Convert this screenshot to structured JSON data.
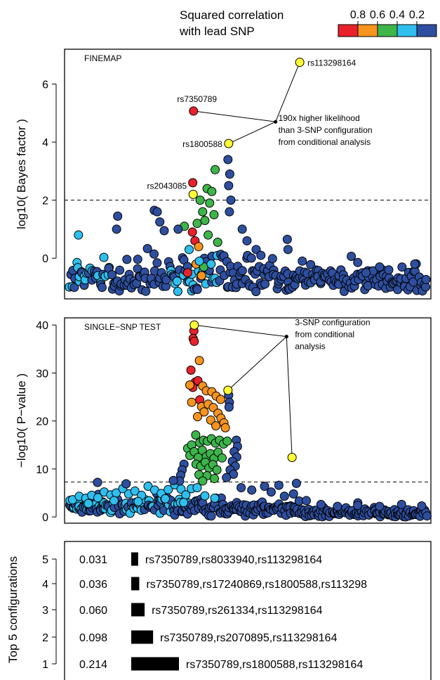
{
  "legend": {
    "title_line1": "Squared correlation",
    "title_line2": "with lead SNP",
    "tick_labels": [
      "0.8",
      "0.6",
      "0.4",
      "0.2"
    ],
    "colors": [
      "#e8212a",
      "#f7941d",
      "#3cb54a",
      "#2ebfef",
      "#2e4fa0"
    ]
  },
  "colors": {
    "lead": "#ffff33",
    "r2_0_8_1": "#e8212a",
    "r2_0_6_0_8": "#f7941d",
    "r2_0_4_0_6": "#3cb54a",
    "r2_0_2_0_4": "#2ebfef",
    "r2_0_0_2": "#2e4fa0"
  },
  "chart_data": [
    {
      "type": "scatter",
      "panel_label": "FINEMAP",
      "ylabel": "log10( Bayes factor )",
      "yticks": [
        0,
        2,
        4,
        6
      ],
      "ylim": [
        -1.4,
        7.2
      ],
      "xlim": [
        0,
        100
      ],
      "threshold_y": 2,
      "annotated_points": [
        {
          "label": "rs113298164",
          "x": 64.2,
          "y": 6.75,
          "color": "lead"
        },
        {
          "label": "rs7350789",
          "x": 35.2,
          "y": 5.07,
          "color": "r2_0_8_1"
        },
        {
          "label": "rs1800588",
          "x": 44.8,
          "y": 3.95,
          "color": "lead"
        },
        {
          "label": "rs2043085",
          "x": 35.1,
          "y": 2.2,
          "color": "lead"
        }
      ],
      "annotation": {
        "lines": [
          "190x higher likelihood",
          "than 3-SNP configuration",
          "from conditional analysis"
        ],
        "junction": {
          "x": 57.6,
          "y": 4.7
        },
        "connects": [
          "rs113298164",
          "rs7350789",
          "rs1800588"
        ]
      },
      "points": [
        {
          "x": 35.0,
          "y": 2.6,
          "c": "r2_0_8_1"
        },
        {
          "x": 34.9,
          "y": 0.9,
          "c": "r2_0_8_1"
        },
        {
          "x": 35.6,
          "y": 0.6,
          "c": "r2_0_8_1"
        },
        {
          "x": 36.6,
          "y": 0.4,
          "c": "r2_0_6_0_8"
        },
        {
          "x": 35.9,
          "y": -0.2,
          "c": "r2_0_6_0_8"
        },
        {
          "x": 33.6,
          "y": -0.5,
          "c": "r2_0_8_1"
        },
        {
          "x": 37.4,
          "y": -0.6,
          "c": "r2_0_6_0_8"
        },
        {
          "x": 32.7,
          "y": 1.1,
          "c": "r2_0_4_0_6"
        },
        {
          "x": 36.2,
          "y": 1.2,
          "c": "r2_0_4_0_6"
        },
        {
          "x": 37.0,
          "y": 2.0,
          "c": "r2_0_4_0_6"
        },
        {
          "x": 37.7,
          "y": 1.6,
          "c": "r2_0_4_0_6"
        },
        {
          "x": 38.9,
          "y": 2.4,
          "c": "r2_0_4_0_6"
        },
        {
          "x": 39.6,
          "y": 1.9,
          "c": "r2_0_4_0_6"
        },
        {
          "x": 40.2,
          "y": 2.3,
          "c": "r2_0_4_0_6"
        },
        {
          "x": 41.1,
          "y": 3.05,
          "c": "r2_0_4_0_6"
        },
        {
          "x": 38.3,
          "y": 1.3,
          "c": "r2_0_4_0_6"
        },
        {
          "x": 39.2,
          "y": 0.8,
          "c": "r2_0_4_0_6"
        },
        {
          "x": 40.8,
          "y": 1.5,
          "c": "r2_0_4_0_6"
        },
        {
          "x": 41.8,
          "y": 0.55,
          "c": "r2_0_4_0_6"
        },
        {
          "x": 38.0,
          "y": -0.3,
          "c": "r2_0_4_0_6"
        },
        {
          "x": 3.8,
          "y": 0.8,
          "c": "r2_0_2_0_4"
        },
        {
          "x": 34.0,
          "y": 0.3,
          "c": "r2_0_2_0_4"
        },
        {
          "x": 36.8,
          "y": -0.1,
          "c": "r2_0_2_0_4"
        },
        {
          "x": 40.0,
          "y": -0.2,
          "c": "r2_0_2_0_4"
        },
        {
          "x": 44.6,
          "y": 3.4,
          "c": "r2_0_0_2"
        },
        {
          "x": 45.1,
          "y": 2.9,
          "c": "r2_0_0_2"
        },
        {
          "x": 44.8,
          "y": 2.5,
          "c": "r2_0_0_2"
        },
        {
          "x": 45.4,
          "y": 2.0,
          "c": "r2_0_0_2"
        },
        {
          "x": 45.0,
          "y": 1.6,
          "c": "r2_0_0_2"
        },
        {
          "x": 14.5,
          "y": 1.45,
          "c": "r2_0_0_2"
        },
        {
          "x": 14.2,
          "y": 1.0,
          "c": "r2_0_0_2"
        },
        {
          "x": 24.5,
          "y": 1.65,
          "c": "r2_0_0_2"
        },
        {
          "x": 25.3,
          "y": 1.6,
          "c": "r2_0_0_2"
        },
        {
          "x": 26.0,
          "y": 1.25,
          "c": "r2_0_0_2"
        },
        {
          "x": 27.2,
          "y": 0.95,
          "c": "r2_0_0_2"
        },
        {
          "x": 31.0,
          "y": 1.0,
          "c": "r2_0_0_2"
        },
        {
          "x": 48.5,
          "y": 1.0,
          "c": "r2_0_0_2"
        },
        {
          "x": 49.8,
          "y": 0.6,
          "c": "r2_0_0_2"
        },
        {
          "x": 52.3,
          "y": 0.3,
          "c": "r2_0_0_2"
        },
        {
          "x": 53.6,
          "y": 0.1,
          "c": "r2_0_0_2"
        },
        {
          "x": 60.8,
          "y": 0.65,
          "c": "r2_0_0_2"
        },
        {
          "x": 61.0,
          "y": 0.3,
          "c": "r2_0_0_2"
        },
        {
          "x": 64.9,
          "y": -0.1,
          "c": "r2_0_0_2"
        },
        {
          "x": 86.0,
          "y": -0.3,
          "c": "r2_0_0_2"
        },
        {
          "x": 95.6,
          "y": -0.2,
          "c": "r2_0_0_2"
        },
        {
          "x": 82.3,
          "y": -0.5,
          "c": "r2_0_0_2"
        },
        {
          "x": 88.5,
          "y": -0.4,
          "c": "r2_0_0_2"
        }
      ]
    },
    {
      "type": "scatter",
      "panel_label": "SINGLE−SNP TEST",
      "ylabel": "−log10( P−value )",
      "yticks": [
        0,
        10,
        20,
        30,
        40
      ],
      "ylim": [
        -1.3,
        41.5
      ],
      "xlim": [
        0,
        100
      ],
      "threshold_y": 7.3,
      "annotated_points": [
        {
          "x": 35.4,
          "y": 40.0,
          "color": "lead"
        },
        {
          "x": 44.6,
          "y": 26.4,
          "color": "lead"
        },
        {
          "x": 62.1,
          "y": 12.4,
          "color": "lead"
        }
      ],
      "annotation": {
        "lines": [
          "3-SNP configuration",
          "from conditional",
          "analysis"
        ],
        "junction": {
          "x": 60.6,
          "y": 37.6
        }
      },
      "points": [
        {
          "x": 35.3,
          "y": 38.8,
          "c": "r2_0_8_1"
        },
        {
          "x": 35.1,
          "y": 37.2,
          "c": "r2_0_8_1"
        },
        {
          "x": 35.4,
          "y": 36.6,
          "c": "r2_0_8_1"
        },
        {
          "x": 34.5,
          "y": 30.6,
          "c": "r2_0_8_1"
        },
        {
          "x": 35.7,
          "y": 28.1,
          "c": "r2_0_8_1"
        },
        {
          "x": 36.4,
          "y": 28.4,
          "c": "r2_0_8_1"
        },
        {
          "x": 35.0,
          "y": 27.0,
          "c": "r2_0_8_1"
        },
        {
          "x": 36.9,
          "y": 24.4,
          "c": "r2_0_8_1"
        },
        {
          "x": 36.8,
          "y": 32.6,
          "c": "r2_0_6_0_8"
        },
        {
          "x": 34.2,
          "y": 27.5,
          "c": "r2_0_6_0_8"
        },
        {
          "x": 37.7,
          "y": 27.3,
          "c": "r2_0_6_0_8"
        },
        {
          "x": 38.7,
          "y": 26.3,
          "c": "r2_0_6_0_8"
        },
        {
          "x": 40.2,
          "y": 26.1,
          "c": "r2_0_6_0_8"
        },
        {
          "x": 41.4,
          "y": 25.2,
          "c": "r2_0_6_0_8"
        },
        {
          "x": 42.6,
          "y": 24.5,
          "c": "r2_0_6_0_8"
        },
        {
          "x": 37.4,
          "y": 23.0,
          "c": "r2_0_6_0_8"
        },
        {
          "x": 39.2,
          "y": 23.5,
          "c": "r2_0_6_0_8"
        },
        {
          "x": 40.6,
          "y": 22.8,
          "c": "r2_0_6_0_8"
        },
        {
          "x": 41.9,
          "y": 21.6,
          "c": "r2_0_6_0_8"
        },
        {
          "x": 42.7,
          "y": 20.6,
          "c": "r2_0_6_0_8"
        },
        {
          "x": 43.5,
          "y": 19.6,
          "c": "r2_0_6_0_8"
        },
        {
          "x": 38.1,
          "y": 21.9,
          "c": "r2_0_6_0_8"
        },
        {
          "x": 39.9,
          "y": 20.2,
          "c": "r2_0_6_0_8"
        },
        {
          "x": 41.3,
          "y": 19.0,
          "c": "r2_0_6_0_8"
        },
        {
          "x": 43.9,
          "y": 18.6,
          "c": "r2_0_6_0_8"
        },
        {
          "x": 36.3,
          "y": 20.9,
          "c": "r2_0_6_0_8"
        },
        {
          "x": 34.7,
          "y": 23.9,
          "c": "r2_0_6_0_8"
        },
        {
          "x": 33.6,
          "y": 14.3,
          "c": "r2_0_4_0_6"
        },
        {
          "x": 34.7,
          "y": 15.0,
          "c": "r2_0_4_0_6"
        },
        {
          "x": 35.8,
          "y": 17.1,
          "c": "r2_0_4_0_6"
        },
        {
          "x": 36.9,
          "y": 15.5,
          "c": "r2_0_4_0_6"
        },
        {
          "x": 37.9,
          "y": 16.0,
          "c": "r2_0_4_0_6"
        },
        {
          "x": 39.0,
          "y": 15.8,
          "c": "r2_0_4_0_6"
        },
        {
          "x": 40.1,
          "y": 16.3,
          "c": "r2_0_4_0_6"
        },
        {
          "x": 41.2,
          "y": 15.4,
          "c": "r2_0_4_0_6"
        },
        {
          "x": 42.3,
          "y": 16.0,
          "c": "r2_0_4_0_6"
        },
        {
          "x": 43.4,
          "y": 15.2,
          "c": "r2_0_4_0_6"
        },
        {
          "x": 44.4,
          "y": 15.8,
          "c": "r2_0_4_0_6"
        },
        {
          "x": 34.2,
          "y": 12.8,
          "c": "r2_0_4_0_6"
        },
        {
          "x": 35.4,
          "y": 13.6,
          "c": "r2_0_4_0_6"
        },
        {
          "x": 36.5,
          "y": 12.4,
          "c": "r2_0_4_0_6"
        },
        {
          "x": 37.6,
          "y": 13.9,
          "c": "r2_0_4_0_6"
        },
        {
          "x": 38.7,
          "y": 12.6,
          "c": "r2_0_4_0_6"
        },
        {
          "x": 39.8,
          "y": 13.2,
          "c": "r2_0_4_0_6"
        },
        {
          "x": 40.8,
          "y": 12.2,
          "c": "r2_0_4_0_6"
        },
        {
          "x": 41.9,
          "y": 13.5,
          "c": "r2_0_4_0_6"
        },
        {
          "x": 43.0,
          "y": 12.3,
          "c": "r2_0_4_0_6"
        },
        {
          "x": 35.9,
          "y": 11.0,
          "c": "r2_0_4_0_6"
        },
        {
          "x": 37.2,
          "y": 10.6,
          "c": "r2_0_4_0_6"
        },
        {
          "x": 38.4,
          "y": 11.4,
          "c": "r2_0_4_0_6"
        },
        {
          "x": 39.4,
          "y": 10.2,
          "c": "r2_0_4_0_6"
        },
        {
          "x": 40.5,
          "y": 10.9,
          "c": "r2_0_4_0_6"
        },
        {
          "x": 41.6,
          "y": 9.8,
          "c": "r2_0_4_0_6"
        },
        {
          "x": 36.7,
          "y": 8.8,
          "c": "r2_0_4_0_6"
        },
        {
          "x": 38.9,
          "y": 8.6,
          "c": "r2_0_4_0_6"
        },
        {
          "x": 40.9,
          "y": 8.0,
          "c": "r2_0_4_0_6"
        },
        {
          "x": 37.7,
          "y": 7.5,
          "c": "r2_0_4_0_6"
        },
        {
          "x": 2.2,
          "y": 3.6,
          "c": "r2_0_2_0_4"
        },
        {
          "x": 4.0,
          "y": 4.3,
          "c": "r2_0_2_0_4"
        },
        {
          "x": 5.8,
          "y": 3.9,
          "c": "r2_0_2_0_4"
        },
        {
          "x": 7.4,
          "y": 4.5,
          "c": "r2_0_2_0_4"
        },
        {
          "x": 9.1,
          "y": 4.0,
          "c": "r2_0_2_0_4"
        },
        {
          "x": 10.8,
          "y": 5.2,
          "c": "r2_0_2_0_4"
        },
        {
          "x": 12.6,
          "y": 4.6,
          "c": "r2_0_2_0_4"
        },
        {
          "x": 14.1,
          "y": 5.0,
          "c": "r2_0_2_0_4"
        },
        {
          "x": 15.9,
          "y": 5.9,
          "c": "r2_0_2_0_4"
        },
        {
          "x": 17.5,
          "y": 4.8,
          "c": "r2_0_2_0_4"
        },
        {
          "x": 19.2,
          "y": 5.4,
          "c": "r2_0_2_0_4"
        },
        {
          "x": 21.0,
          "y": 4.5,
          "c": "r2_0_2_0_4"
        },
        {
          "x": 22.8,
          "y": 6.4,
          "c": "r2_0_2_0_4"
        },
        {
          "x": 24.6,
          "y": 5.6,
          "c": "r2_0_2_0_4"
        },
        {
          "x": 26.4,
          "y": 4.9,
          "c": "r2_0_2_0_4"
        },
        {
          "x": 28.3,
          "y": 5.7,
          "c": "r2_0_2_0_4"
        },
        {
          "x": 30.1,
          "y": 6.7,
          "c": "r2_0_2_0_4"
        },
        {
          "x": 31.8,
          "y": 5.8,
          "c": "r2_0_2_0_4"
        },
        {
          "x": 33.1,
          "y": 4.6,
          "c": "r2_0_2_0_4"
        },
        {
          "x": 34.6,
          "y": 5.9,
          "c": "r2_0_2_0_4"
        },
        {
          "x": 36.2,
          "y": 6.1,
          "c": "r2_0_2_0_4"
        },
        {
          "x": 6.5,
          "y": 2.8,
          "c": "r2_0_2_0_4"
        },
        {
          "x": 13.5,
          "y": 3.4,
          "c": "r2_0_2_0_4"
        },
        {
          "x": 20.1,
          "y": 3.2,
          "c": "r2_0_2_0_4"
        },
        {
          "x": 27.5,
          "y": 3.8,
          "c": "r2_0_2_0_4"
        },
        {
          "x": 32.5,
          "y": 3.0,
          "c": "r2_0_2_0_4"
        },
        {
          "x": 38.3,
          "y": 4.4,
          "c": "r2_0_2_0_4"
        },
        {
          "x": 41.0,
          "y": 3.9,
          "c": "r2_0_2_0_4"
        },
        {
          "x": 44.8,
          "y": 25.4,
          "c": "r2_0_0_2"
        },
        {
          "x": 45.0,
          "y": 23.9,
          "c": "r2_0_0_2"
        },
        {
          "x": 44.9,
          "y": 22.9,
          "c": "r2_0_0_2"
        },
        {
          "x": 46.9,
          "y": 16.0,
          "c": "r2_0_0_2"
        },
        {
          "x": 47.2,
          "y": 14.7,
          "c": "r2_0_0_2"
        },
        {
          "x": 46.3,
          "y": 13.6,
          "c": "r2_0_0_2"
        },
        {
          "x": 47.0,
          "y": 12.5,
          "c": "r2_0_0_2"
        },
        {
          "x": 45.8,
          "y": 11.6,
          "c": "r2_0_0_2"
        },
        {
          "x": 46.6,
          "y": 10.6,
          "c": "r2_0_0_2"
        },
        {
          "x": 45.2,
          "y": 9.8,
          "c": "r2_0_0_2"
        },
        {
          "x": 46.1,
          "y": 8.9,
          "c": "r2_0_0_2"
        },
        {
          "x": 44.2,
          "y": 8.2,
          "c": "r2_0_0_2"
        },
        {
          "x": 32.6,
          "y": 11.0,
          "c": "r2_0_0_2"
        },
        {
          "x": 32.1,
          "y": 9.8,
          "c": "r2_0_0_2"
        },
        {
          "x": 31.7,
          "y": 8.7,
          "c": "r2_0_0_2"
        },
        {
          "x": 31.4,
          "y": 7.5,
          "c": "r2_0_0_2"
        },
        {
          "x": 9.0,
          "y": 7.2,
          "c": "r2_0_0_2"
        },
        {
          "x": 16.8,
          "y": 6.9,
          "c": "r2_0_0_2"
        },
        {
          "x": 29.7,
          "y": 7.6,
          "c": "r2_0_0_2"
        },
        {
          "x": 54.6,
          "y": 6.4,
          "c": "r2_0_0_2"
        },
        {
          "x": 58.5,
          "y": 6.6,
          "c": "r2_0_0_2"
        },
        {
          "x": 63.3,
          "y": 7.0,
          "c": "r2_0_0_2"
        },
        {
          "x": 48.2,
          "y": 6.1,
          "c": "r2_0_0_2"
        },
        {
          "x": 51.1,
          "y": 5.6,
          "c": "r2_0_0_2"
        },
        {
          "x": 56.4,
          "y": 5.2,
          "c": "r2_0_0_2"
        },
        {
          "x": 62.5,
          "y": 4.8,
          "c": "r2_0_0_2"
        },
        {
          "x": 66.0,
          "y": 3.4,
          "c": "r2_0_0_2"
        },
        {
          "x": 70.0,
          "y": 2.6,
          "c": "r2_0_0_2"
        },
        {
          "x": 74.5,
          "y": 2.2,
          "c": "r2_0_0_2"
        },
        {
          "x": 80.0,
          "y": 2.4,
          "c": "r2_0_0_2"
        },
        {
          "x": 86.0,
          "y": 2.2,
          "c": "r2_0_0_2"
        },
        {
          "x": 92.0,
          "y": 2.6,
          "c": "r2_0_0_2"
        },
        {
          "x": 97.5,
          "y": 2.3,
          "c": "r2_0_0_2"
        }
      ]
    },
    {
      "type": "bar",
      "orientation": "horizontal",
      "ylabel": "Top 5 configurations",
      "xlim": [
        0,
        0.214
      ],
      "configurations": [
        {
          "rank": "5",
          "prob_label": "0.031",
          "prob": 0.031,
          "snps": "rs7350789,rs8033940,rs113298164"
        },
        {
          "rank": "4",
          "prob_label": "0.036",
          "prob": 0.036,
          "snps": "rs7350789,rs17240869,rs1800588,rs113298"
        },
        {
          "rank": "3",
          "prob_label": "0.060",
          "prob": 0.06,
          "snps": "rs7350789,rs261334,rs113298164"
        },
        {
          "rank": "2",
          "prob_label": "0.098",
          "prob": 0.098,
          "snps": "rs7350789,rs2070895,rs113298164"
        },
        {
          "rank": "1",
          "prob_label": "0.214",
          "prob": 0.214,
          "snps": "rs7350789,rs1800588,rs113298164"
        }
      ]
    }
  ]
}
